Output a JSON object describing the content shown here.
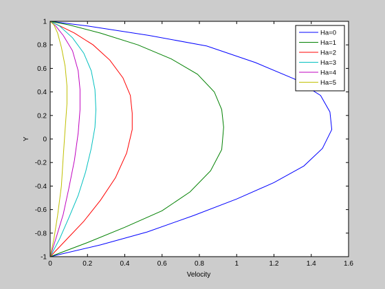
{
  "chart_data": {
    "type": "line",
    "title": "",
    "xlabel": "Velocity",
    "ylabel": "Y",
    "xlim": [
      0,
      1.6
    ],
    "ylim": [
      -1,
      1
    ],
    "xticks": [
      "0",
      "0.2",
      "0.4",
      "0.6",
      "0.8",
      "1",
      "1.2",
      "1.4",
      "1.6"
    ],
    "yticks": [
      "-1",
      "-0.8",
      "-0.6",
      "-0.4",
      "-0.2",
      "0",
      "0.2",
      "0.4",
      "0.6",
      "0.8",
      "1"
    ],
    "grid": false,
    "legend_position": "top-right",
    "series": [
      {
        "name": "Ha=0",
        "color": "#0000ff",
        "x": [
          0,
          0.27,
          0.52,
          0.77,
          1.0,
          1.2,
          1.36,
          1.46,
          1.51,
          1.5,
          1.45,
          1.31,
          1.1,
          0.84,
          0.53,
          0.2,
          0
        ],
        "y": [
          -1,
          -0.9,
          -0.79,
          -0.65,
          -0.51,
          -0.37,
          -0.23,
          -0.08,
          0.08,
          0.23,
          0.37,
          0.51,
          0.65,
          0.79,
          0.88,
          0.96,
          1
        ]
      },
      {
        "name": "Ha=1",
        "color": "#008000",
        "x": [
          0,
          0.2,
          0.4,
          0.6,
          0.75,
          0.86,
          0.92,
          0.93,
          0.92,
          0.88,
          0.79,
          0.65,
          0.47,
          0.27,
          0.1,
          0
        ],
        "y": [
          -1,
          -0.88,
          -0.75,
          -0.61,
          -0.45,
          -0.27,
          -0.09,
          0.1,
          0.25,
          0.4,
          0.55,
          0.68,
          0.8,
          0.9,
          0.97,
          1
        ]
      },
      {
        "name": "Ha=2",
        "color": "#ff0000",
        "x": [
          0,
          0.09,
          0.18,
          0.27,
          0.35,
          0.41,
          0.44,
          0.44,
          0.43,
          0.39,
          0.32,
          0.23,
          0.13,
          0.04,
          0
        ],
        "y": [
          -1,
          -0.85,
          -0.7,
          -0.52,
          -0.33,
          -0.12,
          0.08,
          0.22,
          0.37,
          0.52,
          0.67,
          0.8,
          0.9,
          0.97,
          1
        ]
      },
      {
        "name": "Ha=3",
        "color": "#00bfbf",
        "x": [
          0,
          0.05,
          0.1,
          0.15,
          0.19,
          0.22,
          0.24,
          0.245,
          0.24,
          0.22,
          0.18,
          0.12,
          0.05,
          0
        ],
        "y": [
          -1,
          -0.85,
          -0.67,
          -0.48,
          -0.28,
          -0.08,
          0.1,
          0.25,
          0.42,
          0.58,
          0.73,
          0.86,
          0.96,
          1
        ]
      },
      {
        "name": "Ha=4",
        "color": "#bf00bf",
        "x": [
          0,
          0.03,
          0.07,
          0.1,
          0.13,
          0.15,
          0.16,
          0.16,
          0.15,
          0.12,
          0.07,
          0.03,
          0
        ],
        "y": [
          -1,
          -0.85,
          -0.64,
          -0.42,
          -0.18,
          0.05,
          0.25,
          0.42,
          0.58,
          0.75,
          0.88,
          0.96,
          1
        ]
      },
      {
        "name": "Ha=5",
        "color": "#bfbf00",
        "x": [
          0,
          0.02,
          0.04,
          0.06,
          0.07,
          0.08,
          0.09,
          0.09,
          0.08,
          0.06,
          0.04,
          0.02,
          0
        ],
        "y": [
          -1,
          -0.85,
          -0.65,
          -0.4,
          -0.15,
          0.08,
          0.3,
          0.45,
          0.62,
          0.78,
          0.9,
          0.97,
          1
        ]
      }
    ]
  }
}
